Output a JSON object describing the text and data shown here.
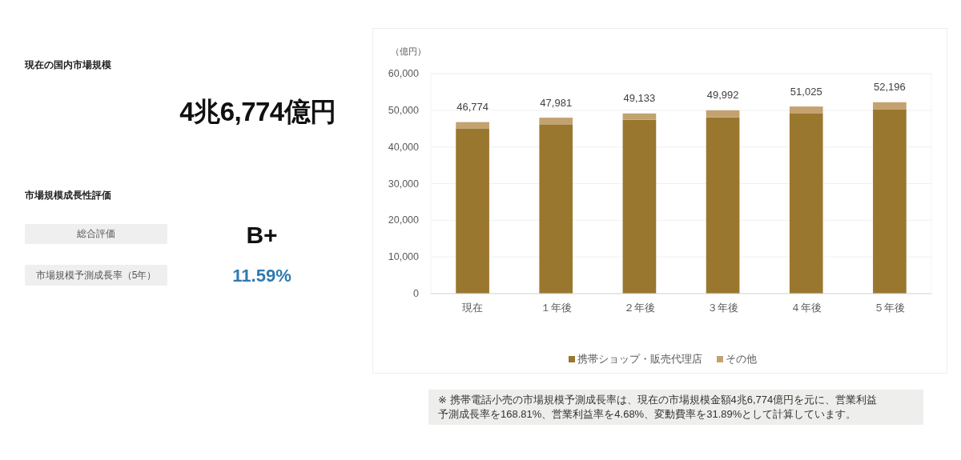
{
  "chart_data": [
    {
      "type": "other",
      "annotations": [
        "現在の国内市場規模",
        "4兆6,774億円",
        "市場規模成長性評価",
        "総合評価",
        "B+",
        "市場規模予測成長率（5年）",
        "11.59%"
      ]
    },
    {
      "type": "bar",
      "stacked": true,
      "ylabel": "（億円）",
      "categories": [
        "現在",
        "１年後",
        "２年後",
        "３年後",
        "４年後",
        "５年後"
      ],
      "series": [
        {
          "name": "携帯ショップ・販売代理店",
          "color": "#9a772e",
          "values": [
            45074,
            46181,
            47433,
            48092,
            49225,
            50296
          ]
        },
        {
          "name": "その他",
          "color": "#c3a270",
          "values": [
            1700,
            1800,
            1700,
            1900,
            1800,
            1900
          ]
        }
      ],
      "totals": [
        "46,774",
        "47,981",
        "49,133",
        "49,992",
        "51,025",
        "52,196"
      ],
      "ylim": [
        0,
        60000
      ],
      "yticks": [
        0,
        {
          "value": 10000,
          "label": "10,000"
        },
        {
          "value": 20000,
          "label": "20,000"
        },
        {
          "value": 30000,
          "label": "30,000"
        },
        {
          "value": 40000,
          "label": "40,000"
        },
        {
          "value": 50000,
          "label": "50,000"
        },
        {
          "value": 60000,
          "label": "60,000"
        }
      ],
      "grid": "y",
      "legend": "bottom",
      "annotations": [
        "※ 携帯電話小売の市場規模予測成長率は、現在の市場規模金額4兆6,774億円を元に、営業利益予測成長率を168.81%、営業利益率を4.68%、変動費率を31.89%として計算しています。"
      ]
    }
  ]
}
